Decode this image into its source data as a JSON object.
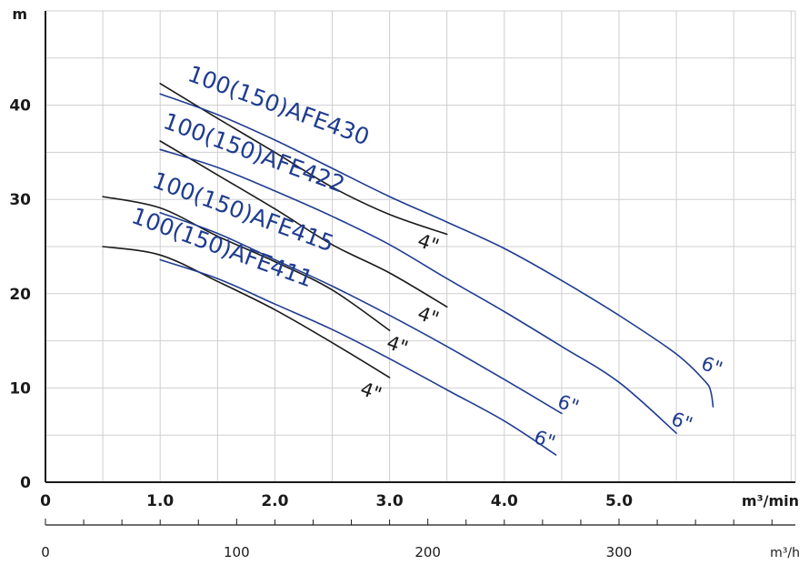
{
  "chart_data": {
    "type": "line",
    "x_unit": "m³/min",
    "x2_unit": "m³/h",
    "y_unit": "m",
    "xlim": [
      0,
      6.5
    ],
    "ylim": [
      0,
      50
    ],
    "x_ticks": [
      "0",
      "1.0",
      "2.0",
      "3.0",
      "4.0",
      "5.0"
    ],
    "x2_ticks": [
      "0",
      "100",
      "200",
      "300"
    ],
    "y_ticks": [
      "0",
      "10",
      "20",
      "30",
      "40"
    ],
    "grid": true,
    "colors": {
      "size_6": "#1f3c8f",
      "size_4": "#1a1a1a"
    },
    "series": [
      {
        "name": "100(150)AFE430",
        "curves": [
          {
            "size": "4\"",
            "points": [
              [
                1.0,
                42.3
              ],
              [
                1.5,
                38.6
              ],
              [
                2.0,
                35.0
              ],
              [
                2.5,
                31.3
              ],
              [
                3.0,
                28.4
              ],
              [
                3.5,
                26.3
              ]
            ]
          },
          {
            "size": "6\"",
            "points": [
              [
                1.0,
                41.2
              ],
              [
                1.5,
                39.0
              ],
              [
                2.0,
                36.3
              ],
              [
                2.5,
                33.3
              ],
              [
                3.0,
                30.3
              ],
              [
                3.5,
                27.6
              ],
              [
                4.0,
                24.8
              ],
              [
                4.5,
                21.4
              ],
              [
                5.0,
                17.7
              ],
              [
                5.5,
                13.6
              ],
              [
                5.75,
                10.7
              ],
              [
                5.8,
                9.6
              ],
              [
                5.82,
                8.0
              ]
            ]
          }
        ]
      },
      {
        "name": "100(150)AFE422",
        "curves": [
          {
            "size": "4\"",
            "points": [
              [
                1.0,
                36.2
              ],
              [
                1.5,
                32.6
              ],
              [
                2.0,
                29.0
              ],
              [
                2.5,
                25.2
              ],
              [
                3.0,
                22.2
              ],
              [
                3.5,
                18.6
              ]
            ]
          },
          {
            "size": "6\"",
            "points": [
              [
                1.0,
                35.3
              ],
              [
                1.5,
                33.4
              ],
              [
                2.0,
                30.9
              ],
              [
                2.5,
                28.2
              ],
              [
                3.0,
                25.2
              ],
              [
                3.5,
                21.6
              ],
              [
                4.0,
                18.1
              ],
              [
                4.5,
                14.4
              ],
              [
                5.0,
                10.6
              ],
              [
                5.5,
                5.2
              ]
            ]
          }
        ]
      },
      {
        "name": "100(150)AFE415",
        "curves": [
          {
            "size": "4\"",
            "points": [
              [
                0.5,
                30.3
              ],
              [
                1.0,
                29.1
              ],
              [
                1.5,
                26.1
              ],
              [
                2.0,
                23.4
              ],
              [
                2.5,
                20.4
              ],
              [
                3.0,
                16.1
              ]
            ]
          },
          {
            "size": "6\"",
            "points": [
              [
                1.0,
                28.6
              ],
              [
                1.5,
                26.4
              ],
              [
                2.0,
                23.6
              ],
              [
                2.5,
                20.8
              ],
              [
                3.0,
                17.7
              ],
              [
                3.5,
                14.4
              ],
              [
                4.0,
                10.9
              ],
              [
                4.5,
                7.3
              ]
            ]
          }
        ]
      },
      {
        "name": "100(150)AFE411",
        "curves": [
          {
            "size": "4\"",
            "points": [
              [
                0.5,
                25.0
              ],
              [
                1.0,
                24.1
              ],
              [
                1.5,
                21.3
              ],
              [
                2.0,
                18.3
              ],
              [
                2.5,
                14.8
              ],
              [
                3.0,
                11.1
              ]
            ]
          },
          {
            "size": "6\"",
            "points": [
              [
                1.0,
                23.6
              ],
              [
                1.5,
                21.6
              ],
              [
                2.0,
                18.9
              ],
              [
                2.5,
                16.2
              ],
              [
                3.0,
                13.1
              ],
              [
                3.5,
                9.8
              ],
              [
                4.0,
                6.5
              ],
              [
                4.45,
                2.9
              ]
            ]
          }
        ]
      }
    ]
  }
}
